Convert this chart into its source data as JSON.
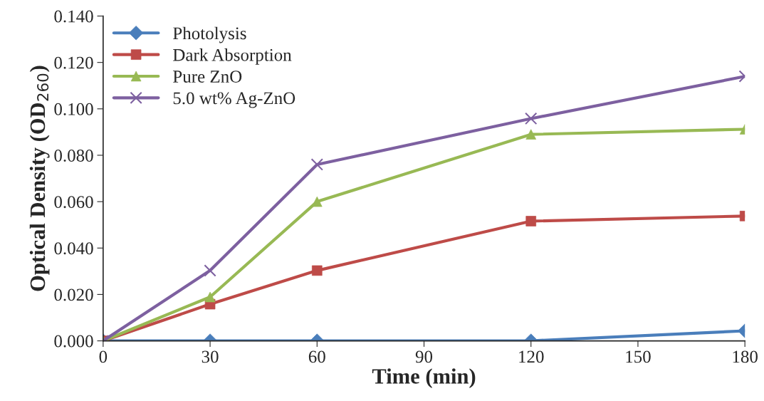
{
  "chart_data": {
    "type": "line",
    "xlabel": "Time (min)",
    "ylabel": "Optical Density (OD$_{260}$)",
    "x": [
      0,
      30,
      60,
      120,
      180
    ],
    "series": [
      {
        "name": "Photolysis",
        "color": "#4a7ebb",
        "marker": "diamond",
        "values": [
          0,
          0,
          0,
          0,
          0.0043
        ]
      },
      {
        "name": "Dark Absorption",
        "color": "#be4b48",
        "marker": "square",
        "values": [
          0,
          0.0158,
          0.0303,
          0.0516,
          0.0538
        ]
      },
      {
        "name": "Pure ZnO",
        "color": "#98b954",
        "marker": "triangle",
        "values": [
          0,
          0.0189,
          0.06,
          0.089,
          0.0912
        ]
      },
      {
        "name": "5.0 wt% Ag-ZnO",
        "color": "#7d60a0",
        "marker": "cross",
        "values": [
          0,
          0.0303,
          0.076,
          0.0958,
          0.114
        ]
      }
    ],
    "xlim": [
      0,
      180
    ],
    "xticks": [
      0,
      30,
      60,
      90,
      120,
      150,
      180
    ],
    "ylim": [
      0,
      0.14
    ],
    "yticks": [
      {
        "value": 0,
        "label": "0.000"
      },
      {
        "value": 0.02,
        "label": "0.020"
      },
      {
        "value": 0.04,
        "label": "0.040"
      },
      {
        "value": 0.06,
        "label": "0.060"
      },
      {
        "value": 0.08,
        "label": "0.080"
      },
      {
        "value": 0.1,
        "label": "0.100"
      },
      {
        "value": 0.12,
        "label": "0.120"
      },
      {
        "value": 0.14,
        "label": "0.140"
      }
    ],
    "grid": false,
    "legend": "top left",
    "line_style": "solid"
  }
}
